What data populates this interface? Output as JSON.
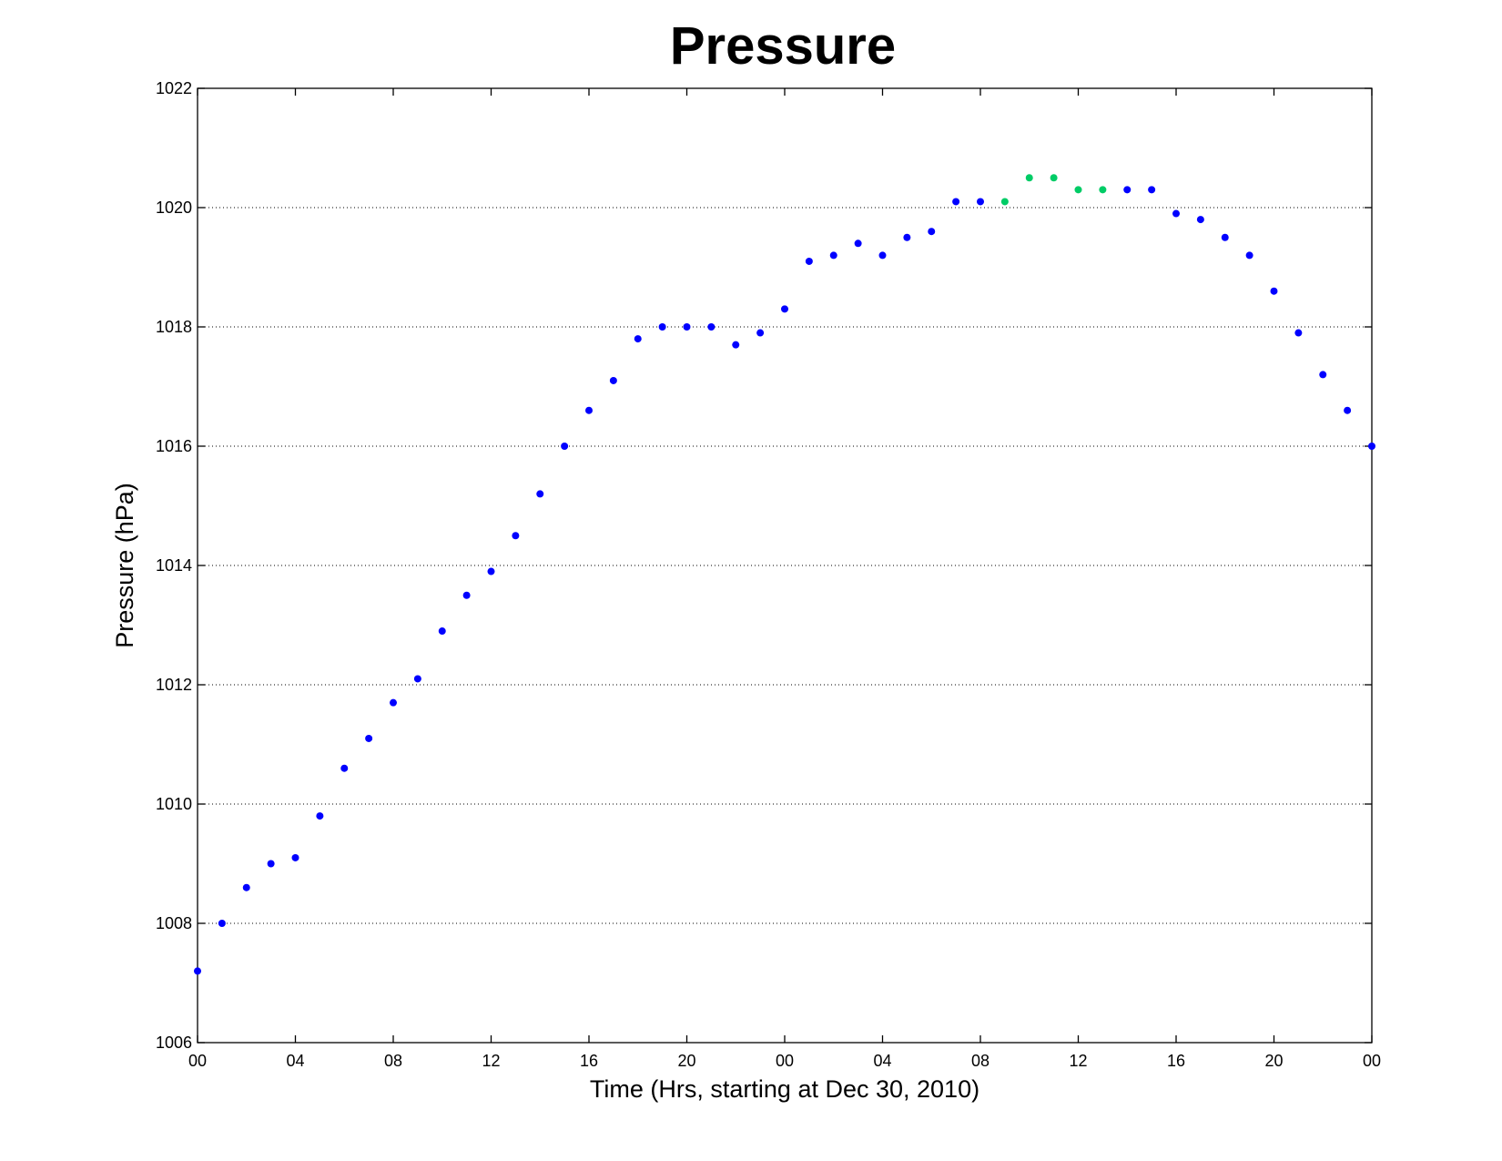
{
  "chart_data": {
    "type": "scatter",
    "title": "Pressure",
    "xlabel": "Time (Hrs, starting at Dec 30, 2010)",
    "ylabel": "Pressure (hPa)",
    "xlim": [
      0,
      48
    ],
    "ylim": [
      1006,
      1022
    ],
    "x_ticks": [
      0,
      4,
      8,
      12,
      16,
      20,
      24,
      28,
      32,
      36,
      40,
      44,
      48
    ],
    "x_tick_labels": [
      "00",
      "04",
      "08",
      "12",
      "16",
      "20",
      "00",
      "04",
      "08",
      "12",
      "16",
      "20",
      "00"
    ],
    "y_ticks": [
      1006,
      1008,
      1010,
      1012,
      1014,
      1016,
      1018,
      1020,
      1022
    ],
    "y_tick_labels": [
      "1006",
      "1008",
      "1010",
      "1012",
      "1014",
      "1016",
      "1018",
      "1020",
      "1022"
    ],
    "grid": "y-dotted",
    "colors": {
      "observed": "#0000ff",
      "highlighted": "#00cc66",
      "axis": "#000000",
      "grid": "#000000"
    },
    "series": [
      {
        "color": "#0000ff",
        "x": [
          0,
          1,
          2,
          3,
          4,
          5,
          6,
          7,
          8,
          9,
          10,
          11,
          12,
          13,
          14,
          15,
          16,
          17,
          18,
          19,
          20,
          21,
          22,
          23,
          24,
          25,
          26,
          27,
          28,
          29,
          30,
          31,
          32,
          38,
          39,
          40,
          41,
          42,
          43,
          44,
          45,
          46,
          47,
          48
        ],
        "y": [
          1007.2,
          1008.0,
          1008.6,
          1009.0,
          1009.1,
          1009.8,
          1010.6,
          1011.1,
          1011.7,
          1012.1,
          1012.9,
          1013.5,
          1013.9,
          1014.5,
          1015.2,
          1016.0,
          1016.6,
          1017.1,
          1017.8,
          1018.0,
          1018.0,
          1018.0,
          1017.7,
          1017.9,
          1018.3,
          1019.1,
          1019.2,
          1019.4,
          1019.2,
          1019.5,
          1019.6,
          1020.1,
          1020.1,
          1020.3,
          1020.3,
          1019.9,
          1019.8,
          1019.5,
          1019.2,
          1018.6,
          1017.9,
          1017.2,
          1016.6,
          1016.0
        ]
      },
      {
        "color": "#00cc66",
        "x": [
          33,
          34,
          35,
          36,
          37
        ],
        "y": [
          1020.1,
          1020.5,
          1020.5,
          1020.3,
          1020.3
        ]
      }
    ]
  }
}
